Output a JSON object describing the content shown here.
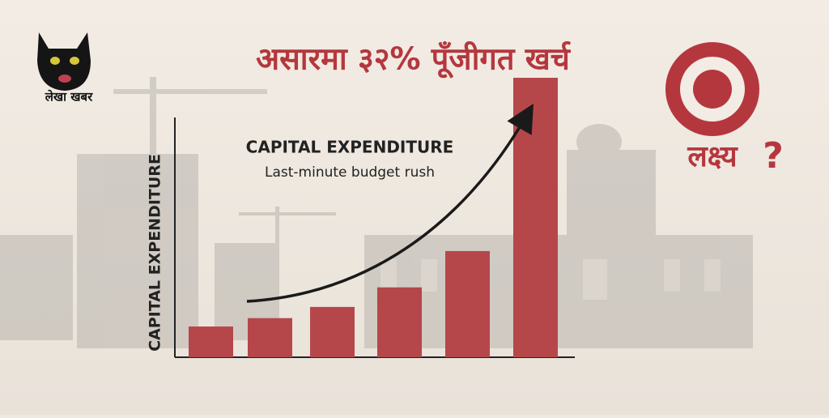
{
  "header": {
    "logo_text": "लेखा खबर",
    "title": "असारमा ३२% पूँजीगत खर्च"
  },
  "target_text": "लक्ष्य",
  "target_mark": "?",
  "chart_data": {
    "type": "bar",
    "title": "CAPITAL EXPENDITURE",
    "subtitle": "Last-minute budget rush",
    "y_label": "CAPITAL EXPENDITURE",
    "categories": [
      null,
      null,
      null,
      null,
      null,
      null
    ],
    "values": [
      11,
      14,
      18,
      25,
      38,
      100
    ],
    "color": "#b5474a",
    "ylim": [
      0,
      100
    ]
  }
}
